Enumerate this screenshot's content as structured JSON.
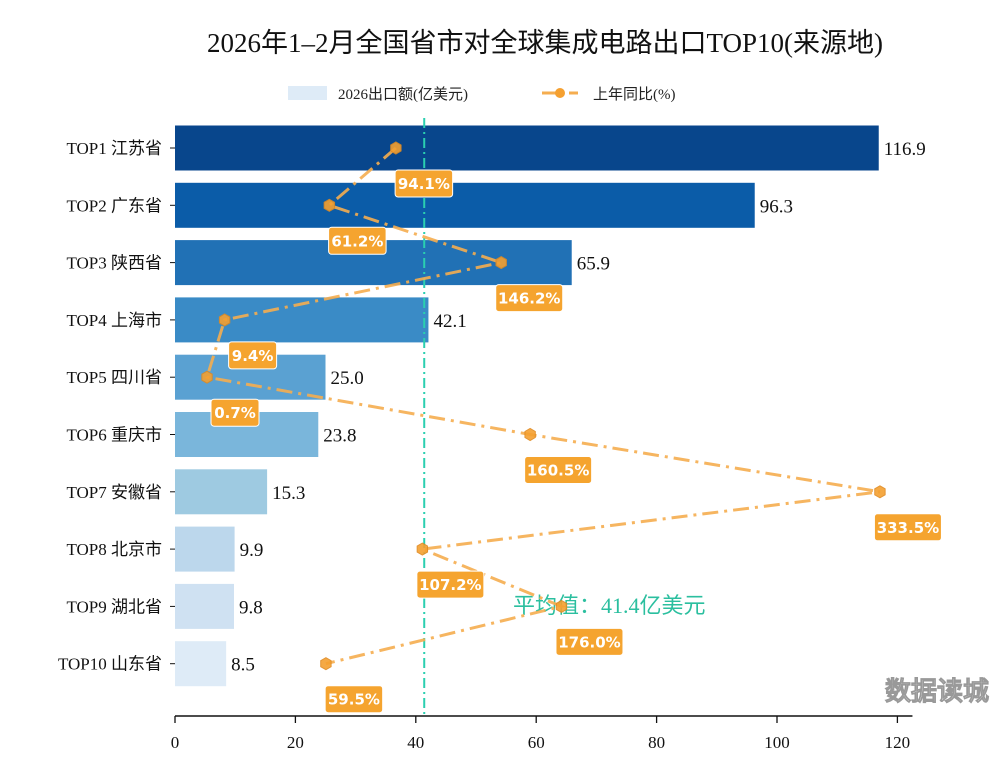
{
  "chart_data": {
    "type": "bar",
    "orientation": "horizontal",
    "title": "2026年1–2月全国省市对全球集成电路出口TOP10(来源地)",
    "categories": [
      "TOP1 江苏省",
      "TOP2 广东省",
      "TOP3 陕西省",
      "TOP4 上海市",
      "TOP5 四川省",
      "TOP6 重庆市",
      "TOP7 安徽省",
      "TOP8 北京市",
      "TOP9 湖北省",
      "TOP10 山东省"
    ],
    "series": [
      {
        "name": "2026出口额(亿美元)",
        "type": "bar",
        "values": [
          116.9,
          96.3,
          65.9,
          42.1,
          25.0,
          23.8,
          15.3,
          9.9,
          9.8,
          8.5
        ],
        "value_labels": [
          "116.9",
          "96.3",
          "65.9",
          "42.1",
          "25.0",
          "23.8",
          "15.3",
          "9.9",
          "9.8",
          "8.5"
        ]
      },
      {
        "name": "上年同比(%)",
        "type": "line",
        "values": [
          94.1,
          61.2,
          146.2,
          9.4,
          0.7,
          160.5,
          333.5,
          107.2,
          176.0,
          59.5
        ],
        "value_labels": [
          "94.1%",
          "61.2%",
          "146.2%",
          "9.4%",
          "0.7%",
          "160.5%",
          "333.5%",
          "107.2%",
          "176.0%",
          "59.5%"
        ]
      }
    ],
    "xlim": [
      0,
      122.5
    ],
    "xticks": [
      "0",
      "20",
      "40",
      "60",
      "80",
      "100",
      "120"
    ],
    "mean_line": {
      "value": 41.4,
      "label": "平均值：41.4亿美元"
    },
    "legend": "top-center",
    "grid": false,
    "colors": {
      "bars": [
        "#08468c",
        "#0b5ca8",
        "#2171b5",
        "#3a8bc6",
        "#5aa1d2",
        "#7ab6db",
        "#9ecae1",
        "#bcd7ec",
        "#cfe1f2",
        "#deebf7"
      ],
      "line": "#f5ad4f",
      "label_bg": "#f5a42f",
      "mean": "#2bcfb0"
    }
  },
  "watermark": "数据读城"
}
